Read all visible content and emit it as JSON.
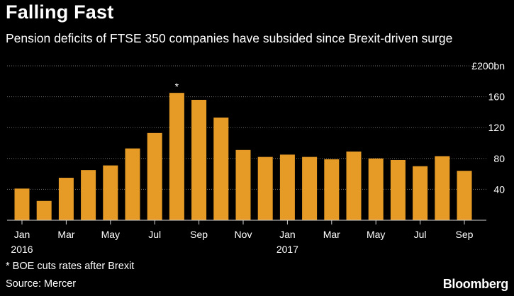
{
  "title": "Falling Fast",
  "subtitle": "Pension deficits of FTSE 350 companies have subsided since Brexit-driven surge",
  "footnote": "* BOE cuts rates after Brexit",
  "source": "Source: Mercer",
  "brand": "Bloomberg",
  "colors": {
    "bar": "#e69b26",
    "grid": "#6b6b6b",
    "background": "#000000",
    "text": "#ffffff"
  },
  "chart_data": {
    "type": "bar",
    "categories": [
      "Jan 2016",
      "Feb 2016",
      "Mar 2016",
      "Apr 2016",
      "May 2016",
      "Jun 2016",
      "Jul 2016",
      "Aug 2016",
      "Sep 2016",
      "Oct 2016",
      "Nov 2016",
      "Dec 2016",
      "Jan 2017",
      "Feb 2017",
      "Mar 2017",
      "Apr 2017",
      "May 2017",
      "Jun 2017",
      "Jul 2017",
      "Aug 2017",
      "Sep 2017"
    ],
    "values": [
      41,
      25,
      55,
      65,
      71,
      93,
      113,
      165,
      156,
      133,
      91,
      82,
      85,
      82,
      79,
      89,
      80,
      78,
      70,
      83,
      64
    ],
    "ylim": [
      0,
      200
    ],
    "y_ticks": [
      40,
      80,
      120,
      160,
      200
    ],
    "y_tick_labels": [
      "40",
      "80",
      "120",
      "160",
      "£200bn"
    ],
    "x_tick_labels": [
      {
        "index": 0,
        "label": "Jan",
        "year": "2016"
      },
      {
        "index": 2,
        "label": "Mar",
        "year": ""
      },
      {
        "index": 4,
        "label": "May",
        "year": ""
      },
      {
        "index": 6,
        "label": "Jul",
        "year": ""
      },
      {
        "index": 8,
        "label": "Sep",
        "year": ""
      },
      {
        "index": 10,
        "label": "Nov",
        "year": ""
      },
      {
        "index": 12,
        "label": "Jan",
        "year": "2017"
      },
      {
        "index": 14,
        "label": "Mar",
        "year": ""
      },
      {
        "index": 16,
        "label": "May",
        "year": ""
      },
      {
        "index": 18,
        "label": "Jul",
        "year": ""
      },
      {
        "index": 20,
        "label": "Sep",
        "year": ""
      }
    ],
    "annotations": [
      {
        "index": 7,
        "text": "*"
      }
    ],
    "grid": true
  }
}
